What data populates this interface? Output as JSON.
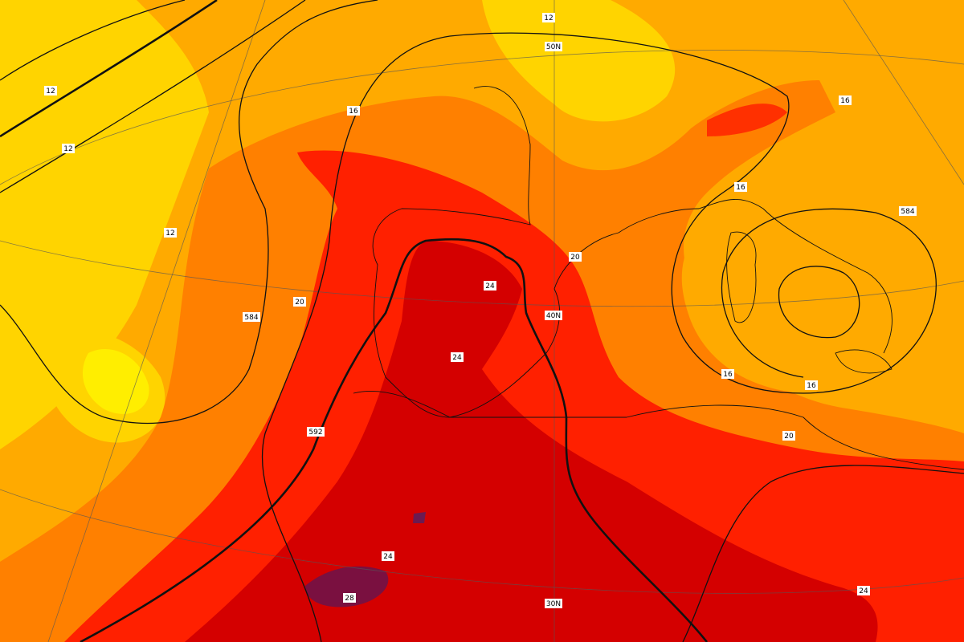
{
  "contour_labels": [
    "12",
    "12",
    "12",
    "12",
    "16",
    "16",
    "16",
    "16",
    "16",
    "20",
    "20",
    "20",
    "24",
    "24",
    "24",
    "24",
    "28",
    "584",
    "584",
    "592"
  ],
  "latitude_labels": [
    "50N",
    "40N",
    "30N"
  ]
}
